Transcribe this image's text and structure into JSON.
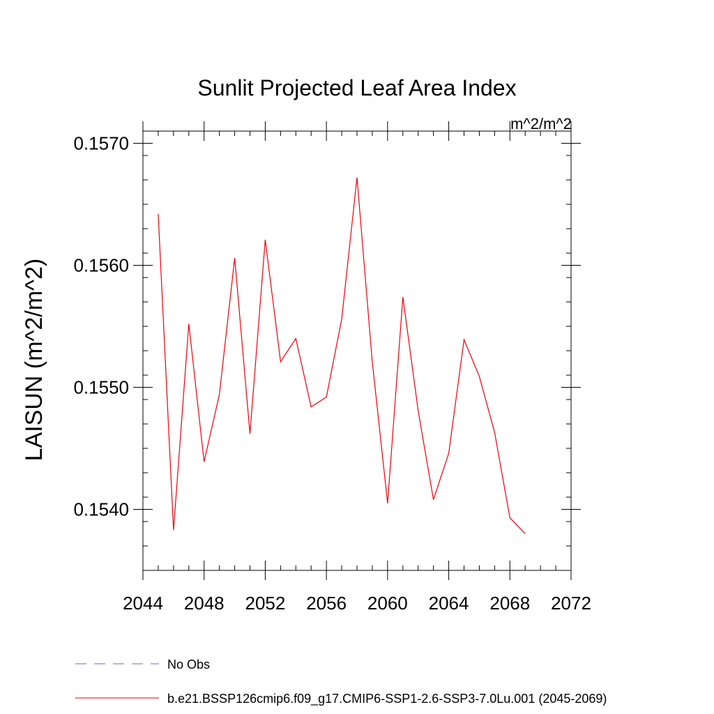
{
  "chart_data": {
    "type": "line",
    "title": "Sunlit Projected Leaf Area Index",
    "units": "m^2/m^2",
    "ylabel": "LAISUN  (m^2/m^2)",
    "xlabel": "",
    "xlim": [
      2044,
      2072
    ],
    "ylim": [
      0.1535,
      0.1571
    ],
    "x_ticks": [
      2044,
      2048,
      2052,
      2056,
      2060,
      2064,
      2068,
      2072
    ],
    "y_ticks": [
      0.154,
      0.155,
      0.156,
      0.157
    ],
    "x_tick_labels": [
      "2044",
      "2048",
      "2052",
      "2056",
      "2060",
      "2064",
      "2068",
      "2072"
    ],
    "y_tick_labels": [
      "0.1540",
      "0.1550",
      "0.1560",
      "0.1570"
    ],
    "grid": false,
    "legend_position": "bottom",
    "series": [
      {
        "name": "b.e21.BSSP126cmip6.f09_g17.CMIP6-SSP1-2.6-SSP3-7.0Lu.001 (2045-2069)",
        "color": "#e8000b",
        "style": "solid",
        "x": [
          2045,
          2046,
          2047,
          2048,
          2049,
          2050,
          2051,
          2052,
          2053,
          2054,
          2055,
          2056,
          2057,
          2058,
          2059,
          2060,
          2061,
          2062,
          2063,
          2064,
          2065,
          2066,
          2067,
          2068,
          2069
        ],
        "values": [
          0.15642,
          0.15383,
          0.15552,
          0.15439,
          0.15494,
          0.15606,
          0.15462,
          0.15621,
          0.15521,
          0.1554,
          0.15484,
          0.15492,
          0.15556,
          0.15672,
          0.15521,
          0.15405,
          0.15574,
          0.15481,
          0.15408,
          0.15446,
          0.15539,
          0.15509,
          0.15463,
          0.15393,
          0.1538
        ]
      }
    ],
    "legend": [
      {
        "label": "No Obs",
        "color": "#6e67b0",
        "style": "dashed"
      },
      {
        "label": "b.e21.BSSP126cmip6.f09_g17.CMIP6-SSP1-2.6-SSP3-7.0Lu.001 (2045-2069)",
        "color": "#e8000b",
        "style": "solid"
      }
    ]
  }
}
